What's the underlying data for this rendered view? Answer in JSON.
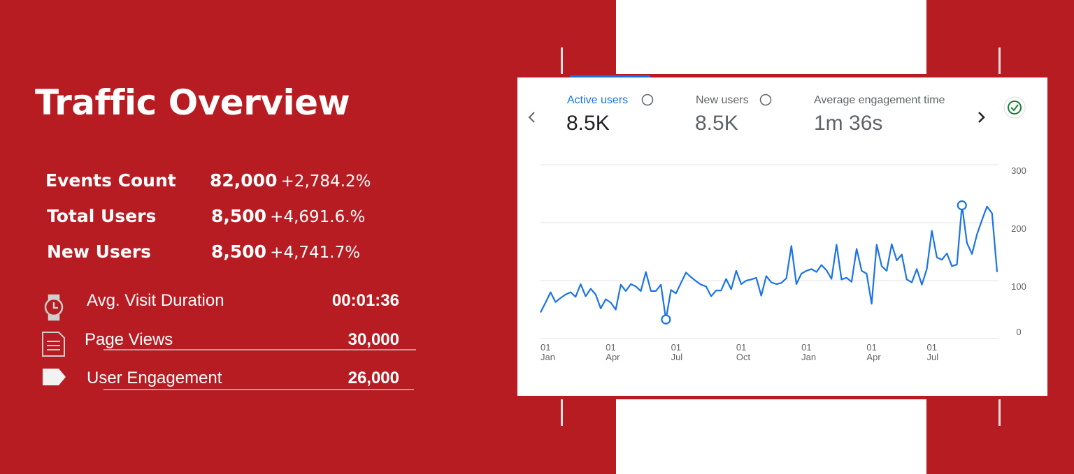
{
  "slide": {
    "title": "Traffic Overview",
    "stats": [
      {
        "label": "Events Count",
        "value": "82,000",
        "change": "+2,784.2%"
      },
      {
        "label": "Total Users",
        "value": "8,500",
        "change": "+4,691.6.%"
      },
      {
        "label": "New Users",
        "value": "8,500",
        "change": "+4,741.7%"
      }
    ],
    "metrics": [
      {
        "label": "Avg. Visit Duration",
        "value": "00:01:36"
      },
      {
        "label": "Page Views",
        "value": "30,000"
      },
      {
        "label": "User Engagement",
        "value": "26,000"
      }
    ]
  },
  "card": {
    "tabs": [
      {
        "label": "Active users",
        "value": "8.5K"
      },
      {
        "label": "New users",
        "value": "8.5K"
      },
      {
        "label": "Average engagement time",
        "value": "1m 36s"
      }
    ]
  },
  "chart_data": {
    "type": "line",
    "color": "#1a73e8",
    "grid": true,
    "values": [
      45,
      62,
      80,
      63,
      70,
      76,
      80,
      72,
      94,
      73,
      86,
      76,
      52,
      68,
      62,
      50,
      93,
      82,
      94,
      90,
      82,
      115,
      82,
      82,
      93,
      33,
      84,
      78,
      96,
      114,
      106,
      99,
      93,
      90,
      73,
      83,
      83,
      103,
      85,
      117,
      94,
      100,
      102,
      105,
      74,
      108,
      97,
      94,
      96,
      104,
      160,
      94,
      112,
      117,
      120,
      115,
      127,
      118,
      103,
      162,
      102,
      105,
      98,
      155,
      117,
      112,
      60,
      162,
      125,
      117,
      163,
      135,
      145,
      102,
      97,
      120,
      93,
      120,
      186,
      140,
      136,
      147,
      125,
      128,
      230,
      165,
      146,
      180,
      205,
      228,
      216,
      115
    ],
    "xlim": [
      0,
      91
    ],
    "xticks": [
      {
        "value": 0,
        "label": "01 Jan"
      },
      {
        "value": 13,
        "label": "01 Apr"
      },
      {
        "value": 26,
        "label": "01 Jul"
      },
      {
        "value": 39,
        "label": "01 Oct"
      },
      {
        "value": 52,
        "label": "01 Jan"
      },
      {
        "value": 65,
        "label": "01 Apr"
      },
      {
        "value": 77,
        "label": "01 Jul"
      }
    ],
    "ylim": [
      0,
      300
    ],
    "yticks": [
      0,
      100,
      200,
      300
    ]
  }
}
